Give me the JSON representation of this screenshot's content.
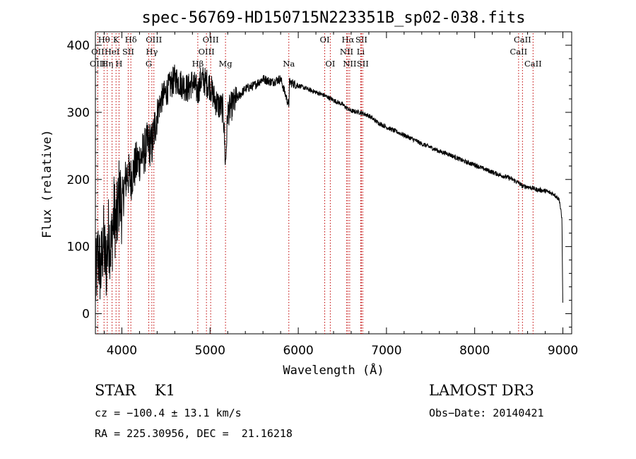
{
  "chart_data": {
    "type": "line",
    "title": "spec-56769-HD150715N223351B_sp02-038.fits",
    "xlabel": "Wavelength (Å)",
    "ylabel": "Flux (relative)",
    "xlim": [
      3700,
      9100
    ],
    "ylim": [
      -30,
      420
    ],
    "x_ticks": [
      4000,
      5000,
      6000,
      7000,
      8000,
      9000
    ],
    "x_tick_labels": [
      "4000",
      "5000",
      "6000",
      "7000",
      "8000",
      "9000"
    ],
    "y_ticks": [
      0,
      100,
      200,
      300,
      400
    ],
    "y_tick_labels": [
      "0",
      "100",
      "200",
      "300",
      "400"
    ],
    "series": [
      {
        "name": "flux",
        "color": "#000000",
        "x": [
          3700,
          3730,
          3760,
          3790,
          3820,
          3850,
          3880,
          3910,
          3940,
          3970,
          4000,
          4030,
          4060,
          4100,
          4150,
          4200,
          4250,
          4300,
          4340,
          4400,
          4450,
          4500,
          4550,
          4600,
          4650,
          4700,
          4750,
          4800,
          4861,
          4900,
          4950,
          5000,
          5050,
          5100,
          5150,
          5175,
          5200,
          5250,
          5300,
          5400,
          5500,
          5600,
          5700,
          5800,
          5893,
          5900,
          6000,
          6100,
          6200,
          6300,
          6400,
          6500,
          6563,
          6600,
          6700,
          6800,
          6900,
          7000,
          7100,
          7200,
          7300,
          7400,
          7500,
          7600,
          7700,
          7800,
          7900,
          8000,
          8100,
          8200,
          8300,
          8400,
          8498,
          8542,
          8600,
          8662,
          8700,
          8800,
          8900,
          8960,
          8990,
          9000
        ],
        "y": [
          40,
          90,
          60,
          110,
          70,
          120,
          100,
          150,
          130,
          180,
          160,
          190,
          210,
          200,
          220,
          230,
          240,
          255,
          250,
          300,
          320,
          330,
          340,
          350,
          345,
          340,
          335,
          345,
          330,
          350,
          345,
          340,
          320,
          310,
          305,
          220,
          300,
          310,
          320,
          335,
          340,
          350,
          345,
          350,
          310,
          345,
          340,
          335,
          330,
          325,
          318,
          312,
          305,
          302,
          300,
          295,
          285,
          278,
          272,
          266,
          260,
          253,
          248,
          242,
          238,
          232,
          226,
          222,
          216,
          211,
          206,
          202,
          195,
          190,
          189,
          187,
          185,
          183,
          178,
          170,
          140,
          0
        ]
      }
    ],
    "line_markers": [
      {
        "label": "Hθ",
        "x": 3798,
        "row": 0
      },
      {
        "label": "K",
        "x": 3934,
        "row": 0
      },
      {
        "label": "Hδ",
        "x": 4102,
        "row": 0
      },
      {
        "label": "OIII",
        "x": 4363,
        "row": 0
      },
      {
        "label": "OIII",
        "x": 5007,
        "row": 0
      },
      {
        "label": "OI",
        "x": 6300,
        "row": 0
      },
      {
        "label": "Hα",
        "x": 6563,
        "row": 0
      },
      {
        "label": "SII",
        "x": 6716,
        "row": 0
      },
      {
        "label": "CaII",
        "x": 8542,
        "row": 0
      },
      {
        "label": "OII",
        "x": 3727,
        "row": 1
      },
      {
        "label": "HeI",
        "x": 3889,
        "row": 1
      },
      {
        "label": "SII",
        "x": 4072,
        "row": 1
      },
      {
        "label": "Hγ",
        "x": 4340,
        "row": 1
      },
      {
        "label": "OIII",
        "x": 4959,
        "row": 1
      },
      {
        "label": "NII",
        "x": 6548,
        "row": 1
      },
      {
        "label": "Li",
        "x": 6708,
        "row": 1
      },
      {
        "label": "CaII",
        "x": 8498,
        "row": 1
      },
      {
        "label": "OIII",
        "x": 3727,
        "row": 2
      },
      {
        "label": "Hη",
        "x": 3835,
        "row": 2
      },
      {
        "label": "H",
        "x": 3968,
        "row": 2
      },
      {
        "label": "G",
        "x": 4305,
        "row": 2
      },
      {
        "label": "Hβ",
        "x": 4861,
        "row": 2
      },
      {
        "label": "Mg",
        "x": 5175,
        "row": 2
      },
      {
        "label": "Na",
        "x": 5893,
        "row": 2
      },
      {
        "label": "OI",
        "x": 6363,
        "row": 2
      },
      {
        "label": "NII",
        "x": 6583,
        "row": 2
      },
      {
        "label": "SII",
        "x": 6731,
        "row": 2
      },
      {
        "label": "CaII",
        "x": 8662,
        "row": 2
      }
    ]
  },
  "info": {
    "object_class": "STAR    K1",
    "survey": "LAMOST DR3",
    "cz": "cz = −100.4 ± 13.1 km/s",
    "obs_date": "Obs−Date: 20140421",
    "radec": "RA = 225.30956, DEC =  21.16218"
  },
  "colors": {
    "spectrum": "#000000",
    "marker_line": "#c00000",
    "background": "#ffffff"
  }
}
